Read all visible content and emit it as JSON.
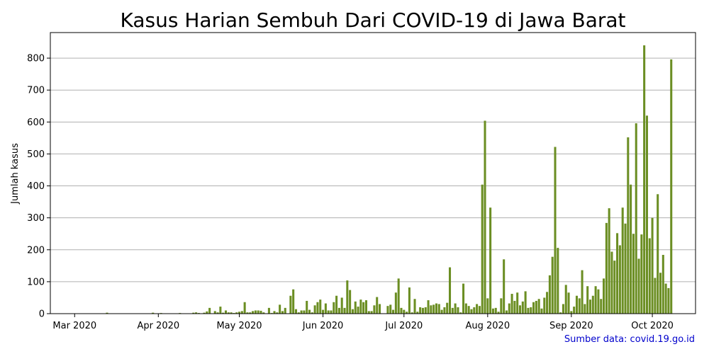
{
  "chart_data": {
    "type": "bar",
    "title": "Kasus Harian Sembuh Dari COVID-19 di Jawa Barat",
    "xlabel": "",
    "ylabel": "Jumlah kasus",
    "x_start": "2020-03-01",
    "x_ticks": [
      {
        "date": "2020-03-01",
        "label": "Mar 2020"
      },
      {
        "date": "2020-04-01",
        "label": "Apr 2020"
      },
      {
        "date": "2020-05-01",
        "label": "May 2020"
      },
      {
        "date": "2020-06-01",
        "label": "Jun 2020"
      },
      {
        "date": "2020-07-01",
        "label": "Jul 2020"
      },
      {
        "date": "2020-08-01",
        "label": "Aug 2020"
      },
      {
        "date": "2020-09-01",
        "label": "Sep 2020"
      },
      {
        "date": "2020-10-01",
        "label": "Oct 2020"
      }
    ],
    "xlim": [
      "2020-02-21",
      "2020-10-17"
    ],
    "ylim": [
      0,
      880
    ],
    "y_ticks": [
      0,
      100,
      200,
      300,
      400,
      500,
      600,
      700,
      800
    ],
    "grid": "horizontal",
    "bar_color": "#6b8e23",
    "values": [
      0,
      0,
      0,
      0,
      0,
      0,
      0,
      0,
      0,
      0,
      0,
      0,
      3,
      0,
      0,
      0,
      0,
      1,
      0,
      0,
      0,
      0,
      0,
      1,
      0,
      0,
      0,
      1,
      1,
      3,
      0,
      0,
      2,
      1,
      0,
      0,
      0,
      0,
      1,
      2,
      1,
      1,
      0,
      1,
      3,
      4,
      2,
      0,
      3,
      7,
      18,
      0,
      8,
      4,
      22,
      3,
      10,
      4,
      4,
      2,
      4,
      6,
      8,
      36,
      4,
      4,
      8,
      10,
      10,
      9,
      4,
      0,
      18,
      2,
      8,
      4,
      28,
      8,
      18,
      0,
      56,
      76,
      14,
      4,
      10,
      10,
      40,
      12,
      4,
      26,
      36,
      44,
      12,
      32,
      10,
      10,
      36,
      56,
      18,
      50,
      18,
      104,
      74,
      14,
      38,
      22,
      44,
      36,
      42,
      8,
      8,
      26,
      52,
      30,
      0,
      0,
      24,
      28,
      12,
      66,
      110,
      18,
      12,
      6,
      82,
      4,
      46,
      6,
      20,
      18,
      20,
      42,
      26,
      28,
      32,
      30,
      12,
      20,
      34,
      145,
      18,
      32,
      20,
      4,
      94,
      32,
      24,
      14,
      20,
      30,
      24,
      404,
      604,
      48,
      332,
      16,
      18,
      6,
      48,
      170,
      10,
      32,
      62,
      40,
      66,
      26,
      38,
      70,
      18,
      20,
      36,
      40,
      46,
      16,
      50,
      68,
      120,
      178,
      522,
      206,
      4,
      30,
      90,
      66,
      8,
      22,
      56,
      48,
      136,
      30,
      86,
      44,
      56,
      86,
      76,
      46,
      110,
      284,
      330,
      194,
      166,
      252,
      214,
      332,
      282,
      552,
      404,
      250,
      596,
      172,
      248,
      840,
      620,
      236,
      300,
      112,
      374,
      128,
      184,
      94,
      80,
      796
    ]
  },
  "source_note": "Sumber data: covid.19.go.id",
  "colors": {
    "source_text": "#0000cc",
    "grid": "#b0b0b0",
    "axis": "#000000"
  }
}
